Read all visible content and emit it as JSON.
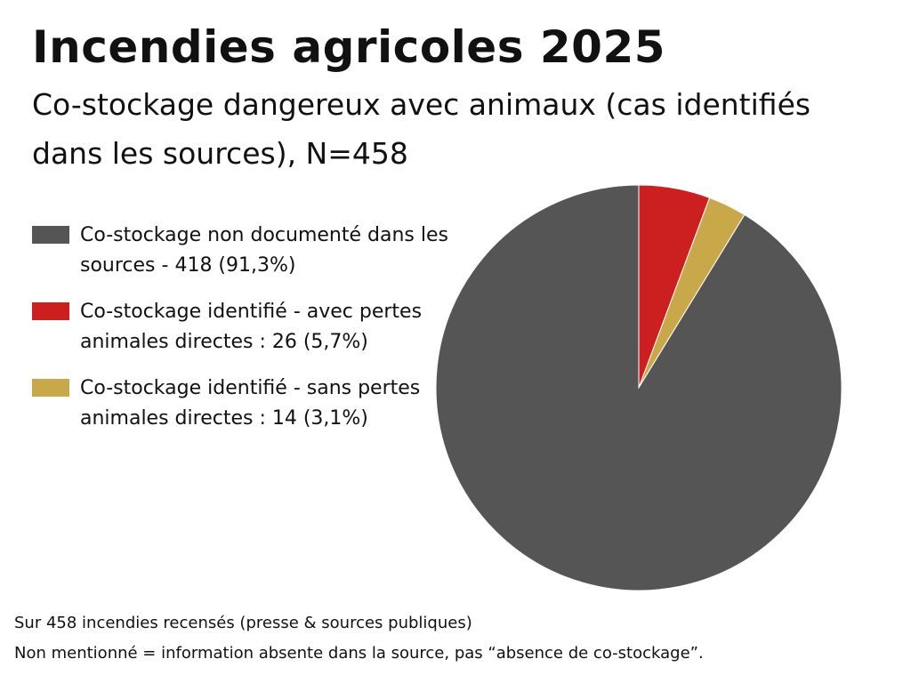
{
  "chart_data": {
    "type": "pie",
    "title": "Incendies agricoles 2025",
    "subtitle": "Co-stockage dangereux avec animaux (cas identifiés dans les sources), N=458",
    "total": 458,
    "slices": [
      {
        "label": "Co-stockage non documenté dans les sources - 418 (91,3%)",
        "value": 418,
        "percent": 91.3,
        "color": "#555555"
      },
      {
        "label": "Co-stockage identifié - avec pertes animales directes : 26 (5,7%)",
        "value": 26,
        "percent": 5.7,
        "color": "#CC1F1F"
      },
      {
        "label": "Co-stockage identifié - sans pertes animales directes : 14 (3,1%)",
        "value": 14,
        "percent": 3.1,
        "color": "#C9A84A"
      }
    ],
    "legend_position": "left"
  },
  "notes": {
    "line1": "Sur 458 incendies recensés (presse & sources publiques)",
    "line2": "Non mentionné = information absente dans la source, pas “absence de co-stockage”."
  }
}
